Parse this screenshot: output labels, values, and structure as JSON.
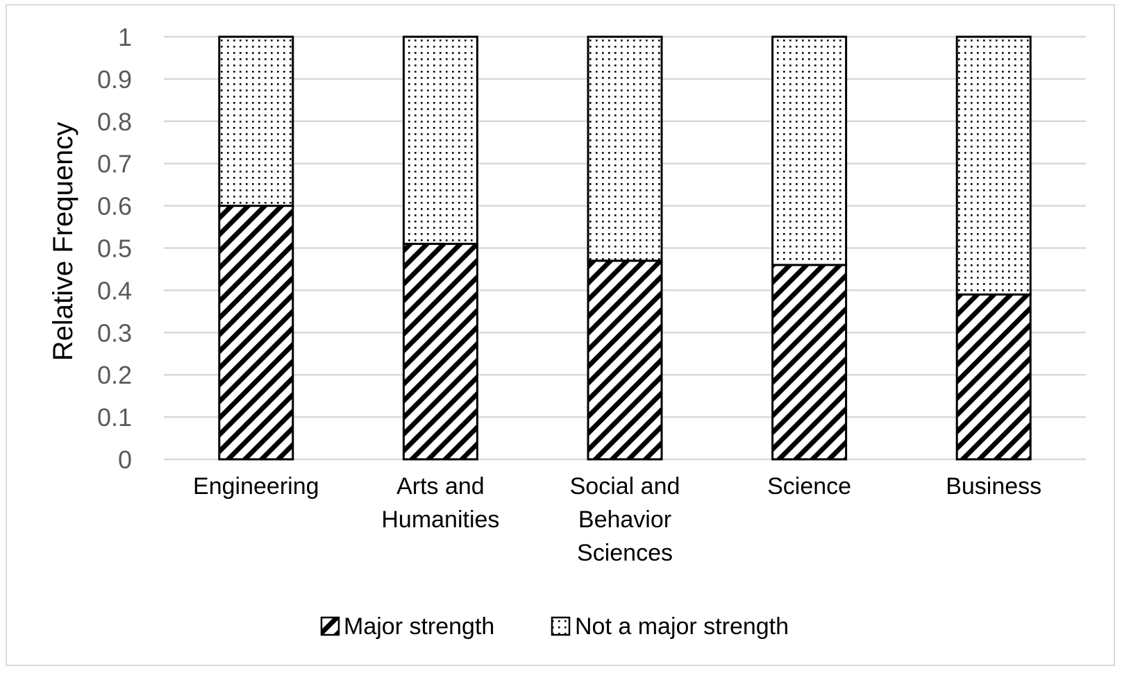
{
  "chart_data": {
    "type": "bar",
    "stacked": true,
    "title": "",
    "xlabel": "",
    "ylabel": "Relative Frequency",
    "ylim": [
      0,
      1
    ],
    "yticks": [
      "0",
      "0.1",
      "0.2",
      "0.3",
      "0.4",
      "0.5",
      "0.6",
      "0.7",
      "0.8",
      "0.9",
      "1"
    ],
    "grid": true,
    "legend_position": "bottom",
    "categories": [
      [
        "Engineering"
      ],
      [
        "Arts and",
        "Humanities"
      ],
      [
        "Social and",
        "Behavior",
        "Sciences"
      ],
      [
        "Science"
      ],
      [
        "Business"
      ]
    ],
    "series": [
      {
        "name": "Major strength",
        "pattern": "diagonal-stripes",
        "values": [
          0.6,
          0.51,
          0.47,
          0.46,
          0.39
        ]
      },
      {
        "name": "Not a major strength",
        "pattern": "dots",
        "values": [
          0.4,
          0.49,
          0.53,
          0.54,
          0.61
        ]
      }
    ],
    "colors": {
      "bar_stroke": "#000000",
      "gridline": "#d9d9d9",
      "tick_text": "#595959",
      "label_text": "#000000"
    }
  }
}
